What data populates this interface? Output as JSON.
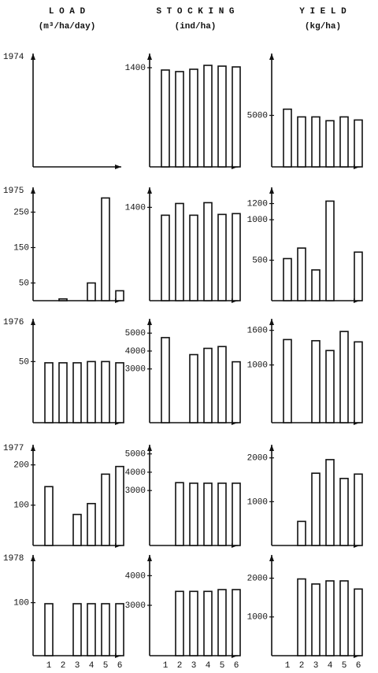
{
  "columns": [
    {
      "title": "L O A D",
      "unit": "(m³/ha/day)"
    },
    {
      "title": "S T O C K I N G",
      "unit": "(ind/ha)"
    },
    {
      "title": "Y I E L D",
      "unit": "(kg/ha)"
    }
  ],
  "chart_data": [
    {
      "type": "bar",
      "title": "1974",
      "values": [
        null,
        null,
        null,
        null,
        null,
        null
      ]
    },
    {
      "type": "bar",
      "values": [
        1367,
        1345,
        1378,
        1433,
        1422,
        1411
      ],
      "ylim": [
        0,
        1600
      ],
      "yticks": [
        1400
      ]
    },
    {
      "type": "bar",
      "values": [
        5600,
        4850,
        4850,
        4480,
        4850,
        4550
      ],
      "ylim": [
        0,
        11000
      ],
      "yticks": [
        5000
      ]
    },
    {
      "type": "bar",
      "title": "1975",
      "values": [
        null,
        5,
        null,
        50,
        290,
        28
      ],
      "ylim": [
        0,
        320
      ],
      "yticks": [
        250,
        150,
        50
      ]
    },
    {
      "type": "bar",
      "values": [
        1282,
        1458,
        1282,
        1470,
        1294,
        1306
      ],
      "ylim": [
        0,
        1700
      ],
      "yticks": [
        1400
      ]
    },
    {
      "type": "bar",
      "values": [
        520,
        650,
        380,
        1230,
        null,
        600
      ],
      "ylim": [
        0,
        1400
      ],
      "yticks": [
        1200,
        1000,
        500
      ]
    },
    {
      "type": "bar",
      "title": "1976",
      "values": [
        49,
        49,
        49,
        50,
        50,
        49
      ],
      "ylim": [
        0,
        85
      ],
      "yticks": [
        50
      ]
    },
    {
      "type": "bar",
      "values": [
        4750,
        null,
        3800,
        4150,
        4250,
        3400
      ],
      "ylim": [
        0,
        5800
      ],
      "yticks": [
        5000,
        4000,
        3000
      ]
    },
    {
      "type": "bar",
      "values": [
        1440,
        null,
        1420,
        1250,
        1580,
        1400
      ],
      "ylim": [
        0,
        1800
      ],
      "yticks": [
        1600,
        1000
      ]
    },
    {
      "type": "bar",
      "title": "1977",
      "values": [
        146,
        null,
        77,
        104,
        177,
        196
      ],
      "ylim": [
        0,
        250
      ],
      "yticks": [
        200,
        100
      ]
    },
    {
      "type": "bar",
      "values": [
        null,
        3430,
        3400,
        3400,
        3400,
        3400
      ],
      "ylim": [
        0,
        5500
      ],
      "yticks": [
        5000,
        4000,
        3000
      ]
    },
    {
      "type": "bar",
      "values": [
        null,
        550,
        1650,
        1960,
        1530,
        1630
      ],
      "ylim": [
        0,
        2300
      ],
      "yticks": [
        2000,
        1000
      ]
    },
    {
      "type": "bar",
      "title": "1978",
      "values": [
        98,
        null,
        98,
        98,
        98,
        98
      ],
      "ylim": [
        0,
        190
      ],
      "yticks": [
        100
      ],
      "categories": [
        "1",
        "2",
        "3",
        "4",
        "5",
        "6"
      ]
    },
    {
      "type": "bar",
      "values": [
        null,
        3470,
        3470,
        3470,
        3530,
        3530
      ],
      "ylim": [
        1300,
        4700
      ],
      "yticks": [
        4000,
        3000
      ],
      "categories": [
        "1",
        "2",
        "3",
        "4",
        "5",
        "6"
      ]
    },
    {
      "type": "bar",
      "values": [
        null,
        1980,
        1850,
        1930,
        1930,
        1720
      ],
      "ylim": [
        0,
        2600
      ],
      "yticks": [
        2000,
        1000
      ],
      "categories": [
        "1",
        "2",
        "3",
        "4",
        "5",
        "6"
      ]
    }
  ]
}
